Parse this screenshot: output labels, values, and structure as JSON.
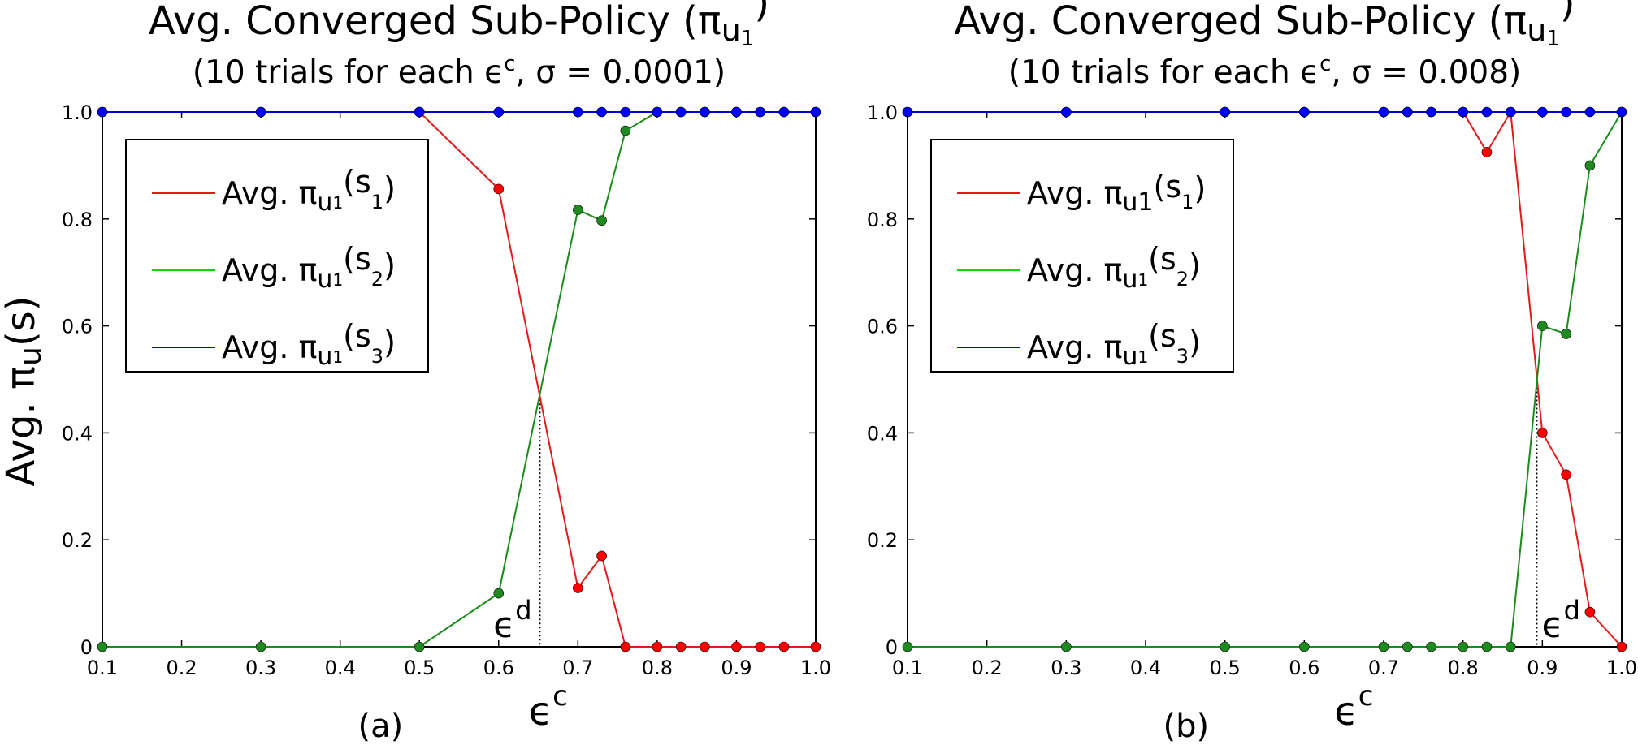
{
  "figure": {
    "ylabel_main": "Avg. π",
    "ylabel_sub": "u",
    "ylabel_tail": "(s)"
  },
  "chart_data": [
    {
      "type": "line",
      "title": "Avg. Converged Sub-Policy (π",
      "title_sub": "u",
      "title_subsub": "1",
      "title_close": ")",
      "subtitle_pre": "(10 trials for each ϵ",
      "subtitle_sup": "c",
      "subtitle_post": ", σ = 0.0001)",
      "xlabel": "ϵ",
      "xlabel_sup": "c",
      "caption": "(a)",
      "xlim": [
        0.1,
        1.0
      ],
      "ylim": [
        0,
        1.0
      ],
      "xticks": [
        "0.1",
        "0.2",
        "0.3",
        "0.4",
        "0.5",
        "0.6",
        "0.7",
        "0.8",
        "0.9",
        "1.0"
      ],
      "yticks": [
        "0",
        "0.2",
        "0.4",
        "0.6",
        "0.8",
        "1.0"
      ],
      "x": [
        0.1,
        0.3,
        0.5,
        0.6,
        0.7,
        0.73,
        0.76,
        0.8,
        0.83,
        0.86,
        0.9,
        0.93,
        0.96,
        1.0
      ],
      "series": [
        {
          "name": "Avg. π_u1(s1)",
          "label_pre": "Avg. π",
          "label_sub": "u",
          "label_subsub": "1",
          "label_arg": "(s",
          "label_arg_sub": "1",
          "label_close": ")",
          "line_color": "#e31a1c",
          "marker_color": "#ff0000",
          "values": [
            1.0,
            1.0,
            1.0,
            0.856,
            0.11,
            0.17,
            0.0,
            0.0,
            0.0,
            0.0,
            0.0,
            0.0,
            0.0,
            0.0
          ]
        },
        {
          "name": "Avg. π_u1(s2)",
          "label_pre": "Avg. π",
          "label_sub": "u",
          "label_subsub": "1",
          "label_arg": "(s",
          "label_arg_sub": "2",
          "label_close": ")",
          "line_color": "#1a8c1a",
          "marker_color": "#1f8a1f",
          "legend_color": "#00dd00",
          "values": [
            0.0,
            0.0,
            0.0,
            0.1,
            0.817,
            0.797,
            0.965,
            1.0,
            1.0,
            1.0,
            1.0,
            1.0,
            1.0,
            1.0
          ]
        },
        {
          "name": "Avg. π_u1(s3)",
          "label_pre": "Avg. π",
          "label_sub": "u",
          "label_subsub": "1",
          "label_arg": "(s",
          "label_arg_sub": "3",
          "label_close": ")",
          "line_color": "#0000cc",
          "marker_color": "#0000ff",
          "values": [
            1.0,
            1.0,
            1.0,
            1.0,
            1.0,
            1.0,
            1.0,
            1.0,
            1.0,
            1.0,
            1.0,
            1.0,
            1.0,
            1.0
          ]
        }
      ],
      "annotation": {
        "text": "ϵ",
        "sup": "d",
        "x": 0.652,
        "y_top": 0.47,
        "placement": "left"
      }
    },
    {
      "type": "line",
      "title": "Avg. Converged Sub-Policy (π",
      "title_sub": "u",
      "title_subsub": "1",
      "title_close": ")",
      "subtitle_pre": "(10 trials for each ϵ",
      "subtitle_sup": "c",
      "subtitle_post": ", σ = 0.008)",
      "xlabel": "ϵ",
      "xlabel_sup": "c",
      "caption": "(b)",
      "xlim": [
        0.1,
        1.0
      ],
      "ylim": [
        0,
        1.0
      ],
      "xticks": [
        "0.1",
        "0.2",
        "0.3",
        "0.4",
        "0.5",
        "0.6",
        "0.7",
        "0.8",
        "0.9",
        "1.0"
      ],
      "yticks": [
        "0",
        "0.2",
        "0.4",
        "0.6",
        "0.8",
        "1.0"
      ],
      "x": [
        0.1,
        0.3,
        0.5,
        0.6,
        0.7,
        0.73,
        0.76,
        0.8,
        0.83,
        0.86,
        0.9,
        0.93,
        0.96,
        1.0
      ],
      "series": [
        {
          "name": "Avg. πu1(s1)",
          "label_pre": "Avg. π",
          "label_sub": "u1",
          "label_subsub": "",
          "label_arg": "(s",
          "label_arg_sub": "1",
          "label_close": ")",
          "line_color": "#e31a1c",
          "marker_color": "#ff0000",
          "values": [
            1.0,
            1.0,
            1.0,
            1.0,
            1.0,
            1.0,
            1.0,
            1.0,
            0.925,
            1.0,
            0.4,
            0.322,
            0.065,
            0.0
          ]
        },
        {
          "name": "Avg. π_u1(s2)",
          "label_pre": "Avg. π",
          "label_sub": "u",
          "label_subsub": "1",
          "label_arg": "(s",
          "label_arg_sub": "2",
          "label_close": ")",
          "line_color": "#1a8c1a",
          "marker_color": "#1f8a1f",
          "legend_color": "#00dd00",
          "values": [
            0.0,
            0.0,
            0.0,
            0.0,
            0.0,
            0.0,
            0.0,
            0.0,
            0.0,
            0.0,
            0.6,
            0.585,
            0.9,
            1.0
          ]
        },
        {
          "name": "Avg. π_u1(s3)",
          "label_pre": "Avg. π",
          "label_sub": "u",
          "label_subsub": "1",
          "label_arg": "(s",
          "label_arg_sub": "3",
          "label_close": ")",
          "line_color": "#0000cc",
          "marker_color": "#0000ff",
          "values": [
            1.0,
            1.0,
            1.0,
            1.0,
            1.0,
            1.0,
            1.0,
            1.0,
            1.0,
            1.0,
            1.0,
            1.0,
            1.0,
            1.0
          ]
        }
      ],
      "annotation": {
        "text": "ϵ",
        "sup": "d",
        "x": 0.893,
        "y_top": 0.5,
        "placement": "right"
      }
    }
  ]
}
